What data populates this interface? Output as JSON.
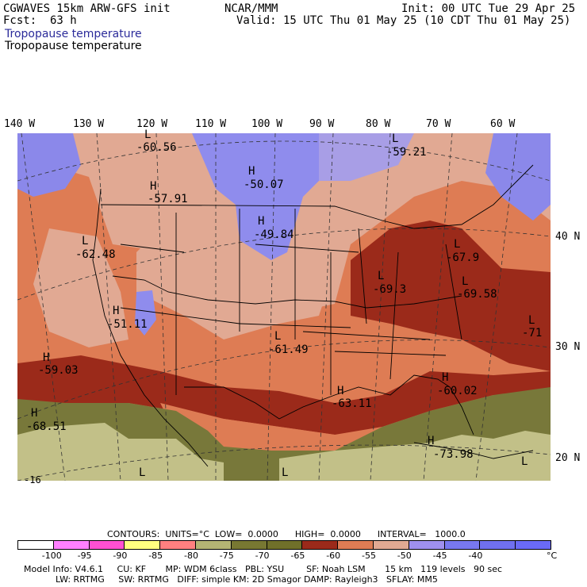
{
  "header": {
    "model": "CGWAVES 15km ARW-GFS init",
    "fcst_label": "Fcst:",
    "fcst_value": "63 h",
    "org": "NCAR/MMM",
    "init": "Init: 00 UTC Tue 29 Apr 25",
    "valid": "Valid: 15 UTC Thu 01 May 25 (10 CDT Thu 01 May 25)",
    "field_blue": "Tropopause temperature",
    "field_black": "Tropopause temperature"
  },
  "lon_labels": [
    "140 W",
    "130 W",
    "120 W",
    "110 W",
    "100 W",
    "90 W",
    "80 W",
    "70 W",
    "60 W"
  ],
  "lat_labels": [
    "40 N",
    "30 N",
    "20 N"
  ],
  "map_labels": [
    {
      "letter": "L",
      "value": "-60.56"
    },
    {
      "letter": "H",
      "value": "-50.07"
    },
    {
      "letter": "L",
      "value": "-59.21"
    },
    {
      "letter": "H",
      "value": "-57.91"
    },
    {
      "letter": "H",
      "value": "-49.84"
    },
    {
      "letter": "L",
      "value": "-62.48"
    },
    {
      "letter": "L",
      "value": "-67.9"
    },
    {
      "letter": "L",
      "value": "-69.3"
    },
    {
      "letter": "L",
      "value": "-69.58"
    },
    {
      "letter": "H",
      "value": "-51.11"
    },
    {
      "letter": "L",
      "value": "-61.49"
    },
    {
      "letter": "L",
      "value": "-71"
    },
    {
      "letter": "H",
      "value": "-59.03"
    },
    {
      "letter": "H",
      "value": "-60.02"
    },
    {
      "letter": "H",
      "value": "-63.11"
    },
    {
      "letter": "H",
      "value": "-68.51"
    },
    {
      "letter": "H",
      "value": "-73.98"
    },
    {
      "letter": "",
      "value": "-16"
    },
    {
      "letter": "L",
      "value": ""
    },
    {
      "letter": "L",
      "value": ""
    },
    {
      "letter": "L",
      "value": ""
    }
  ],
  "contours": {
    "text": "CONTOURS:  UNITS=°C  LOW=  0.0000      HIGH=  0.0000      INTERVAL=   1000.0"
  },
  "legend": {
    "colors": [
      "#ffffff",
      "#ff80ff",
      "#ff50d2",
      "#ffff80",
      "#ff8080",
      "#b4b474",
      "#787832",
      "#70702a",
      "#9b2a1a",
      "#de7c54",
      "#e1a993",
      "#9f90ee",
      "#7878f0",
      "#7070f0",
      "#6a6af6"
    ],
    "ticks": [
      "-100",
      "-95",
      "-90",
      "-85",
      "-80",
      "-75",
      "-70",
      "-65",
      "-60",
      "-55",
      "-50",
      "-45",
      "-40"
    ],
    "unit": "°C"
  },
  "footer": {
    "line1": "Model Info: V4.6.1     CU: KF       MP: WDM 6class   PBL: YSU        SF: Noah LSM       15 km   119 levels   90 sec",
    "line2": "LW: RRTMG     SW: RRTMG   DIFF: simple KM: 2D Smagor DAMP: Rayleigh3   SFLAY: MM5"
  },
  "colors": {
    "blue_region": "#9090ee",
    "lavender": "#a89ee6",
    "salmon_light": "#e1a993",
    "orange": "#de7c54",
    "dark_red": "#9b2a1a",
    "olive": "#78783a",
    "khaki": "#c2c088",
    "khaki_light": "#cfcd99"
  }
}
